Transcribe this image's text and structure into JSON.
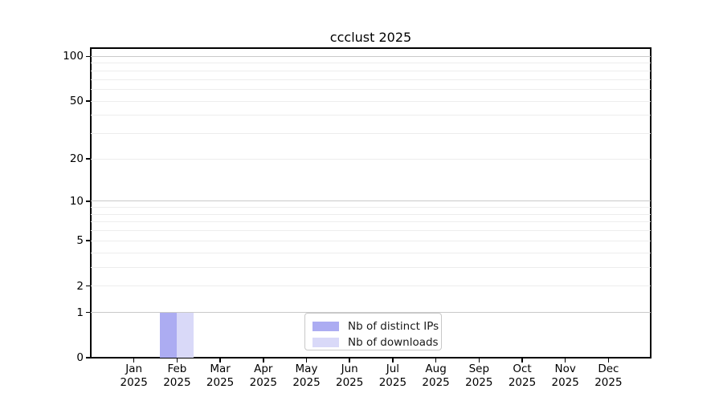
{
  "chart_data": {
    "type": "bar",
    "title": "ccclust 2025",
    "x_tick_year": "2025",
    "categories": [
      "Jan",
      "Feb",
      "Mar",
      "Apr",
      "May",
      "Jun",
      "Jul",
      "Aug",
      "Sep",
      "Oct",
      "Nov",
      "Dec"
    ],
    "series": [
      {
        "name": "Nb of distinct IPs",
        "color": "#acacf2",
        "values": [
          0,
          1,
          0,
          0,
          0,
          0,
          0,
          0,
          0,
          0,
          0,
          0
        ]
      },
      {
        "name": "Nb of downloads",
        "color": "#d9d9f8",
        "values": [
          0,
          1,
          0,
          0,
          0,
          0,
          0,
          0,
          0,
          0,
          0,
          0
        ]
      }
    ],
    "y_scale": "log1p",
    "ylim": [
      0,
      114
    ],
    "y_ticks": [
      0,
      1,
      2,
      5,
      10,
      20,
      50,
      100
    ],
    "grid": {
      "orientation": "horizontal",
      "major_values": [
        1,
        10,
        100
      ],
      "minor_values": [
        2,
        3,
        4,
        5,
        6,
        7,
        8,
        9,
        20,
        30,
        40,
        50,
        60,
        70,
        80,
        90
      ]
    },
    "legend": {
      "entries": [
        "Nb of distinct IPs",
        "Nb of downloads"
      ],
      "position": "inside-bottom-center"
    }
  }
}
